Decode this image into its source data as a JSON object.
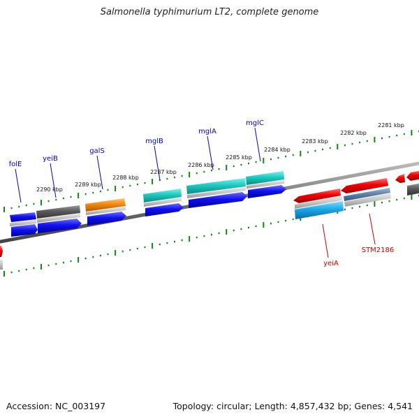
{
  "title": "Salmonella typhimurium LT2, complete genome",
  "footer": {
    "accession": "Accession: NC_003197",
    "summary": "Topology: circular; Length: 4,857,432 bp; Genes: 4,541"
  },
  "colors": {
    "forward_genes": "#0000e0",
    "reverse_genes": "#e00000",
    "backbone": "#7a7a7a",
    "ticks": "#118811",
    "label_blue": "#0000cc",
    "label_red": "#cc0000"
  },
  "ticks": [
    {
      "text": "2281 kbp"
    },
    {
      "text": "2282 kbp"
    },
    {
      "text": "2283 kbp"
    },
    {
      "text": "2284 kbp"
    },
    {
      "text": "2285 kbp"
    },
    {
      "text": "2286 kbp"
    },
    {
      "text": "2287 kbp"
    },
    {
      "text": "2288 kbp"
    },
    {
      "text": "2289 kbp"
    },
    {
      "text": "2290 kbp"
    }
  ],
  "gene_labels": [
    {
      "text": "folE",
      "strand": "forward"
    },
    {
      "text": "yeiB",
      "strand": "forward"
    },
    {
      "text": "galS",
      "strand": "forward"
    },
    {
      "text": "mglB",
      "strand": "forward"
    },
    {
      "text": "mglA",
      "strand": "forward"
    },
    {
      "text": "mglC",
      "strand": "forward"
    },
    {
      "text": "yeiA",
      "strand": "reverse"
    },
    {
      "text": "STM2186",
      "strand": "reverse"
    }
  ]
}
